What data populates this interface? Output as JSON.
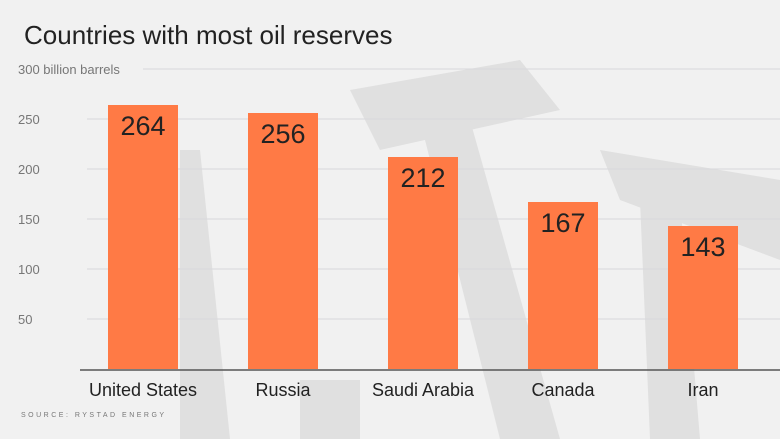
{
  "chart_data": {
    "type": "bar",
    "title": "Countries with most oil reserves",
    "ylabel": "billion barrels",
    "categories": [
      "United States",
      "Russia",
      "Saudi Arabia",
      "Canada",
      "Iran"
    ],
    "values": [
      264,
      256,
      212,
      167,
      143
    ],
    "data_labels": [
      "264",
      "256",
      "212",
      "167",
      "143"
    ],
    "yticks": [
      50,
      100,
      150,
      200,
      250,
      300
    ],
    "ytick_labels": [
      "50",
      "100",
      "150",
      "200",
      "250",
      "300 billion barrels"
    ],
    "ylim": [
      0,
      300
    ],
    "grid": true,
    "bar_color": "#ff7a45",
    "source": "SOURCE: RYSTAD ENERGY"
  }
}
